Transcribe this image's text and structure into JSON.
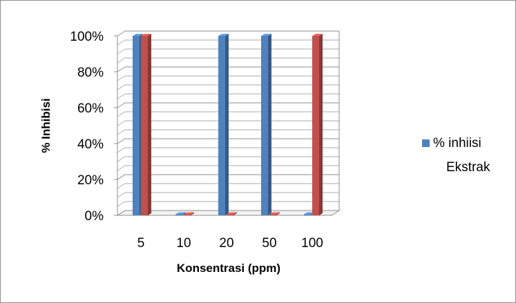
{
  "chart_data": {
    "type": "bar",
    "style": "3d-clustered-column",
    "categories": [
      "5",
      "10",
      "20",
      "50",
      "100"
    ],
    "series": [
      {
        "name": "% inhiisi Ekstrak",
        "values": [
          100,
          0,
          100,
          100,
          0
        ],
        "color": "#4f81bd"
      },
      {
        "values": [
          100,
          0,
          0,
          0,
          100
        ],
        "color": "#c0504d"
      }
    ],
    "ylim": [
      0,
      100
    ],
    "y_ticks": [
      0,
      20,
      40,
      60,
      80,
      100
    ],
    "y_tick_suffix": "%",
    "xlabel": "Konsentrasi (ppm)",
    "ylabel": "% Inhibisi",
    "grid": true,
    "legend": {
      "position": "right",
      "lines": [
        "% inhiisi",
        "Ekstrak"
      ]
    }
  }
}
